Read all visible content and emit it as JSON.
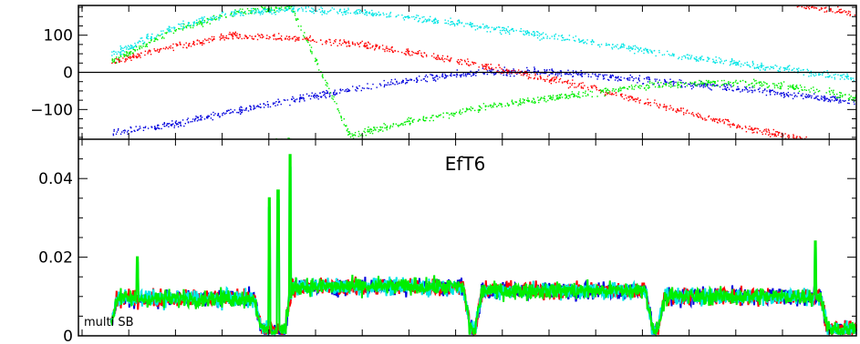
{
  "chart_data": [
    {
      "type": "scatter",
      "title": "",
      "xlabel": "",
      "ylabel": "",
      "ylim": [
        -180,
        180
      ],
      "yticks": [
        {
          "value": 100,
          "label": "100"
        },
        {
          "value": 0,
          "label": "0"
        },
        {
          "value": -100,
          "label": "−100"
        }
      ],
      "x_range": [
        0,
        1000
      ],
      "zero_line": true,
      "series": [
        {
          "color": "#0000dd",
          "x": [
            0,
            80,
            160,
            240,
            320,
            400,
            480,
            560,
            640,
            720,
            800,
            880,
            960,
            1000
          ],
          "y": [
            -160,
            -140,
            -105,
            -75,
            -45,
            -20,
            0,
            5,
            -5,
            -20,
            -35,
            -50,
            -70,
            -80
          ]
        },
        {
          "color": "#ff0000",
          "x": [
            0,
            80,
            160,
            240,
            320,
            400,
            480,
            560,
            640,
            720,
            800,
            880,
            960,
            1000
          ],
          "y": [
            30,
            70,
            100,
            95,
            80,
            55,
            25,
            -5,
            -40,
            -80,
            -120,
            -160,
            -190,
            -200
          ]
        },
        {
          "color": "#00ee00",
          "x": [
            0,
            80,
            160,
            240,
            320,
            400,
            480,
            560,
            640,
            720,
            800,
            880,
            960,
            1000
          ],
          "y": [
            30,
            110,
            160,
            180,
            -170,
            -130,
            -100,
            -75,
            -55,
            -35,
            -25,
            -30,
            -50,
            -70
          ]
        },
        {
          "color": "#00e5e5",
          "x": [
            0,
            80,
            160,
            240,
            320,
            400,
            480,
            560,
            640,
            720,
            800,
            880,
            960,
            1000
          ],
          "y": [
            50,
            120,
            160,
            170,
            165,
            150,
            130,
            105,
            85,
            60,
            35,
            15,
            -5,
            -15
          ]
        }
      ]
    },
    {
      "type": "line",
      "title": "EfT6",
      "xlabel": "",
      "ylabel": "",
      "ylim": [
        0,
        0.05
      ],
      "yticks": [
        {
          "value": 0.04,
          "label": "0.04"
        },
        {
          "value": 0.02,
          "label": "0.02"
        },
        {
          "value": 0,
          "label": "0"
        }
      ],
      "x_range": [
        0,
        1000
      ],
      "annotation": "multi SB",
      "segments": [
        {
          "x": [
            0,
            200
          ],
          "level": 0.0095
        },
        {
          "x": [
            235,
            480
          ],
          "level": 0.0125
        },
        {
          "x": [
            490,
            725
          ],
          "level": 0.0115
        },
        {
          "x": [
            735,
            960
          ],
          "level": 0.01
        }
      ],
      "peaks": [
        {
          "x": 212,
          "y": 0.035
        },
        {
          "x": 224,
          "y": 0.037
        },
        {
          "x": 240,
          "y": 0.046
        },
        {
          "x": 945,
          "y": 0.024
        },
        {
          "x": 35,
          "y": 0.02
        }
      ],
      "series": [
        {
          "color": "#0000dd"
        },
        {
          "color": "#ff0000"
        },
        {
          "color": "#00e5e5"
        },
        {
          "color": "#00ee00"
        }
      ]
    }
  ]
}
